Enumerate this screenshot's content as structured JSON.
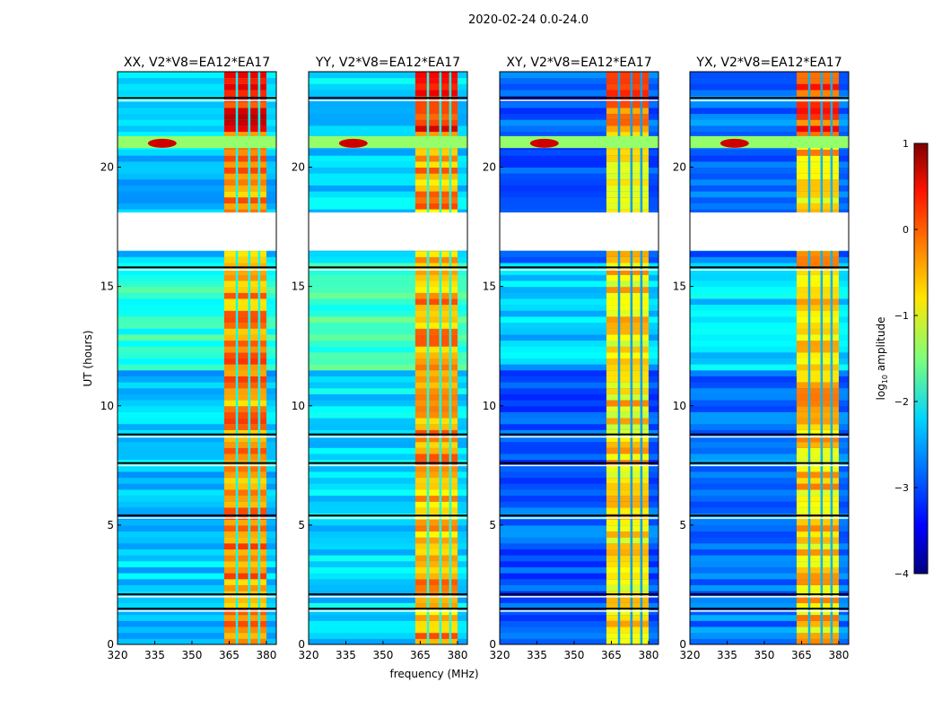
{
  "chart_data": {
    "type": "heatmap",
    "title": "2020-02-24 0.0-24.0",
    "xlabel": "frequency (MHz)",
    "ylabel": "UT (hours)",
    "xlim": [
      320,
      384
    ],
    "ylim": [
      0,
      24
    ],
    "xticks": [
      "320",
      "335",
      "350",
      "365",
      "380"
    ],
    "yticks": [
      "0",
      "5",
      "10",
      "15",
      "20"
    ],
    "colorbar": {
      "label": "log10 amplitude",
      "label_main": "log",
      "label_sub": "10",
      "label_rest": " amplitude",
      "range": [
        -4,
        1
      ],
      "ticks": [
        "−4",
        "−3",
        "−2",
        "−1",
        "0",
        "1"
      ],
      "colormap": "jet"
    },
    "panels": [
      {
        "title": "XX, V2*V8=EA12*EA17",
        "background_level": -2.4,
        "band_level": -0.5
      },
      {
        "title": "YY, V2*V8=EA12*EA17",
        "background_level": -2.3,
        "band_level": -0.6
      },
      {
        "title": "XY, V2*V8=EA12*EA17",
        "background_level": -2.9,
        "band_level": -0.9
      },
      {
        "title": "YX, V2*V8=EA12*EA17",
        "background_level": -2.8,
        "band_level": -0.8
      }
    ],
    "features": {
      "strong_band_mhz": [
        363,
        380
      ],
      "band_gaps_mhz": [
        368,
        373,
        377
      ],
      "data_gap_hours": [
        16.5,
        18.1
      ],
      "rfi_burst_hours": [
        20.8,
        21.3
      ],
      "flagged_rows_hours": [
        1.5,
        2.1,
        5.4,
        7.6,
        8.8,
        15.8,
        22.9
      ]
    }
  }
}
